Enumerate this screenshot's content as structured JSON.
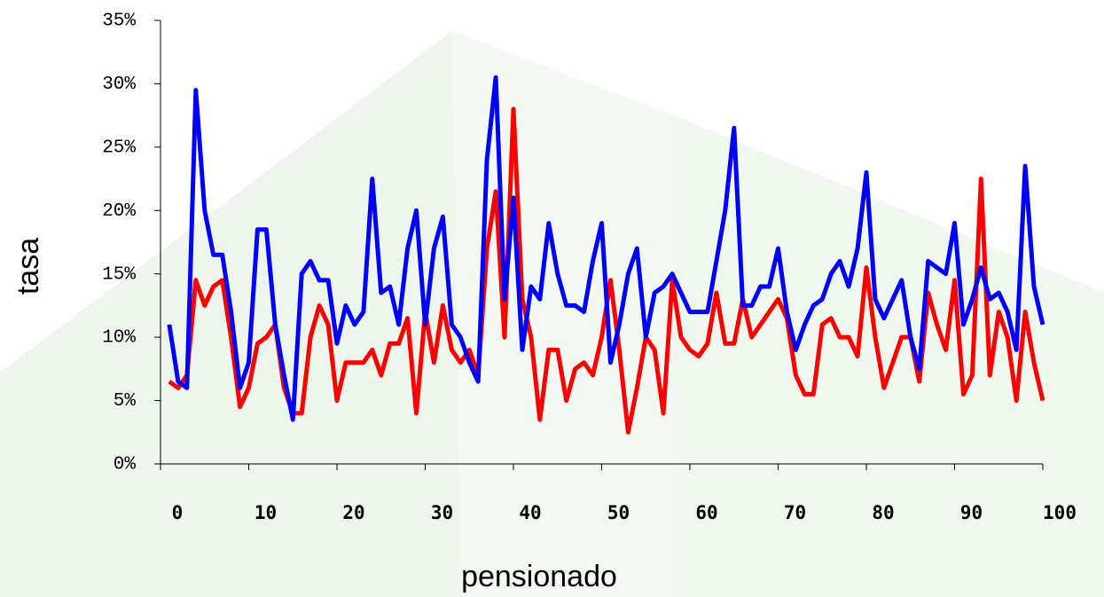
{
  "chart_data": {
    "type": "line",
    "x_label": "pensionado",
    "y_label": "tasa",
    "x": [
      1,
      2,
      3,
      4,
      5,
      6,
      7,
      8,
      9,
      10,
      11,
      12,
      13,
      14,
      15,
      16,
      17,
      18,
      19,
      20,
      21,
      22,
      23,
      24,
      25,
      26,
      27,
      28,
      29,
      30,
      31,
      32,
      33,
      34,
      35,
      36,
      37,
      38,
      39,
      40,
      41,
      42,
      43,
      44,
      45,
      46,
      47,
      48,
      49,
      50,
      51,
      52,
      53,
      54,
      55,
      56,
      57,
      58,
      59,
      60,
      61,
      62,
      63,
      64,
      65,
      66,
      67,
      68,
      69,
      70,
      71,
      72,
      73,
      74,
      75,
      76,
      77,
      78,
      79,
      80,
      81,
      82,
      83,
      84,
      85,
      86,
      87,
      88,
      89,
      90,
      91,
      92,
      93,
      94,
      95,
      96,
      97,
      98,
      99,
      100
    ],
    "series": [
      {
        "color": "#ff0000",
        "values": [
          6.5,
          6,
          7,
          14.5,
          12.5,
          14,
          14.5,
          10,
          4.5,
          6,
          9.5,
          10,
          11,
          6,
          4,
          4,
          10,
          12.5,
          11,
          5,
          8,
          8,
          8,
          9,
          7,
          9.5,
          9.5,
          11.5,
          4,
          12,
          8,
          12.5,
          9,
          8,
          9,
          7,
          17,
          21.5,
          10,
          28,
          13,
          10,
          3.5,
          9,
          9,
          5,
          7.5,
          8,
          7,
          10,
          14.5,
          9,
          2.5,
          6,
          10,
          9,
          4,
          14.5,
          10,
          9,
          8.5,
          9.5,
          13.5,
          9.5,
          9.5,
          13,
          10,
          11,
          12,
          13,
          11.5,
          7,
          5.5,
          5.5,
          11,
          11.5,
          10,
          10,
          8.5,
          15.5,
          10,
          6,
          8,
          10,
          10,
          6.5,
          13.5,
          11,
          9,
          14.5,
          5.5,
          7,
          22.5,
          7,
          12,
          10,
          5,
          12,
          8,
          5
        ]
      },
      {
        "color": "#0000ff",
        "values": [
          11,
          6.5,
          6,
          29.5,
          20,
          16.5,
          16.5,
          12,
          6,
          8,
          18.5,
          18.5,
          11,
          7,
          3.5,
          15,
          16,
          14.5,
          14.5,
          9.5,
          12.5,
          11,
          12,
          22.5,
          13.5,
          14,
          11,
          17,
          20,
          11,
          17,
          19.5,
          11,
          10,
          8,
          6.5,
          24,
          30.5,
          13,
          21,
          9,
          14,
          13,
          19,
          15,
          12.5,
          12.5,
          12,
          16,
          19,
          8,
          11,
          15,
          17,
          10,
          13.5,
          14,
          15,
          13.5,
          12,
          12,
          12,
          16,
          20,
          26.5,
          12.5,
          12.5,
          14,
          14,
          17,
          12,
          9,
          11,
          12.5,
          13,
          15,
          16,
          14,
          17,
          23,
          13,
          11.5,
          13,
          14.5,
          10,
          7.5,
          16,
          15.5,
          15,
          19,
          11,
          13,
          15.5,
          13,
          13.5,
          12,
          9,
          23.5,
          14,
          11
        ]
      }
    ],
    "xlim": [
      0,
      100
    ],
    "xticks": [
      0,
      10,
      20,
      30,
      40,
      50,
      60,
      70,
      80,
      90,
      100
    ],
    "ylim": [
      0,
      35
    ],
    "yticks": [
      {
        "value": 0,
        "label": "0%"
      },
      {
        "value": 5,
        "label": "5%"
      },
      {
        "value": 10,
        "label": "10%"
      },
      {
        "value": 15,
        "label": "15%"
      },
      {
        "value": 20,
        "label": "20%"
      },
      {
        "value": 25,
        "label": "25%"
      },
      {
        "value": 30,
        "label": "30%"
      },
      {
        "value": 35,
        "label": "35%"
      }
    ]
  }
}
